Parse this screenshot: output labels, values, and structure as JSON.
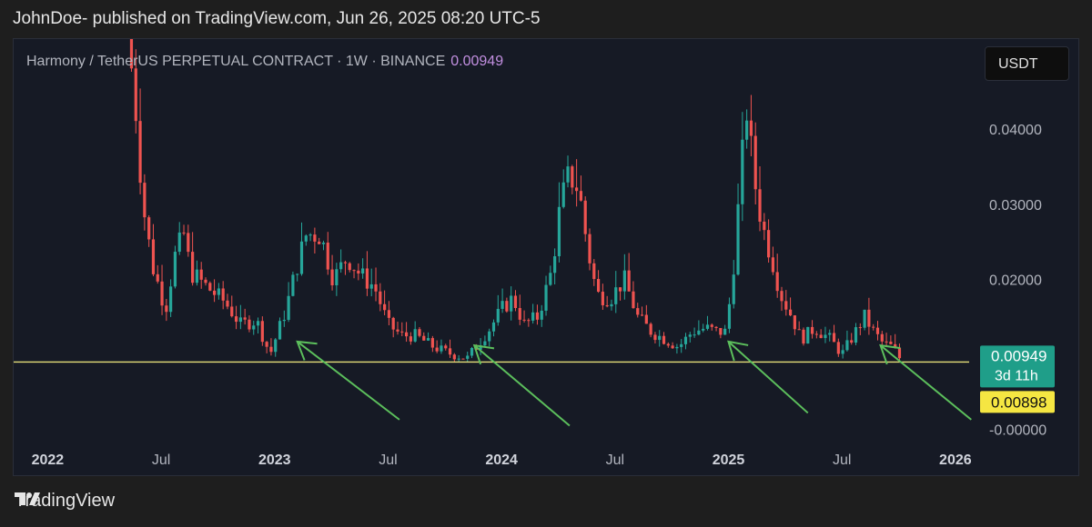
{
  "header": {
    "published": "JohnDoe- published on TradingView.com, Jun 26, 2025 08:20 UTC-5"
  },
  "symbol": {
    "text": "Harmony / TetherUS PERPETUAL CONTRACT · 1W · BINANCE",
    "price": "0.00949"
  },
  "currency_button": "USDT",
  "footer": {
    "brand": "TradingView"
  },
  "colors": {
    "up": "#26a69a",
    "down": "#ef5350",
    "support": "#e6e07a",
    "arrow": "#5cbf5c",
    "price_tag": "#1f9e89",
    "level_tag": "#f5e642"
  },
  "chart_data": {
    "type": "candlestick",
    "timeframe": "1W",
    "y_ticks": [
      "0.04000",
      "0.03000",
      "0.02000",
      "-0.00000"
    ],
    "x_ticks": [
      "2022",
      "Jul",
      "2023",
      "Jul",
      "2024",
      "Jul",
      "2025",
      "Jul",
      "2026"
    ],
    "x_tick_dates": [
      2022.0,
      2022.5,
      2023.0,
      2023.5,
      2024.0,
      2024.5,
      2025.0,
      2025.5,
      2026.0
    ],
    "ylim": [
      -0.0015,
      0.052
    ],
    "xlim": [
      2021.85,
      2026.55
    ],
    "current_price": {
      "value": 0.00949,
      "label": "0.00949",
      "countdown": "3d 11h"
    },
    "support_level": {
      "value": 0.00898,
      "label": "0.00898"
    },
    "annotations": {
      "arrows": [
        {
          "tip": [
            2023.1,
            0.0117
          ],
          "tail": [
            2023.55,
            0.0013
          ]
        },
        {
          "tip": [
            2023.88,
            0.0112
          ],
          "tail": [
            2024.3,
            0.0005
          ]
        },
        {
          "tip": [
            2025.0,
            0.0117
          ],
          "tail": [
            2025.35,
            0.0022
          ]
        },
        {
          "tip": [
            2025.67,
            0.0112
          ],
          "tail": [
            2026.07,
            0.0013
          ]
        }
      ]
    },
    "anchors": [
      [
        2022.35,
        0.052
      ],
      [
        2022.38,
        0.046
      ],
      [
        2022.42,
        0.03
      ],
      [
        2022.46,
        0.022
      ],
      [
        2022.52,
        0.016
      ],
      [
        2022.56,
        0.023
      ],
      [
        2022.6,
        0.026
      ],
      [
        2022.63,
        0.021
      ],
      [
        2022.7,
        0.019
      ],
      [
        2022.78,
        0.017
      ],
      [
        2022.85,
        0.014
      ],
      [
        2022.92,
        0.0145
      ],
      [
        2022.98,
        0.01
      ],
      [
        2023.05,
        0.016
      ],
      [
        2023.1,
        0.022
      ],
      [
        2023.14,
        0.026
      ],
      [
        2023.2,
        0.026
      ],
      [
        2023.26,
        0.02
      ],
      [
        2023.32,
        0.023
      ],
      [
        2023.38,
        0.0205
      ],
      [
        2023.44,
        0.019
      ],
      [
        2023.5,
        0.014
      ],
      [
        2023.56,
        0.0125
      ],
      [
        2023.62,
        0.0125
      ],
      [
        2023.7,
        0.011
      ],
      [
        2023.78,
        0.01
      ],
      [
        2023.85,
        0.0095
      ],
      [
        2023.9,
        0.0115
      ],
      [
        2023.95,
        0.0135
      ],
      [
        2024.0,
        0.016
      ],
      [
        2024.05,
        0.0175
      ],
      [
        2024.1,
        0.014
      ],
      [
        2024.16,
        0.015
      ],
      [
        2024.22,
        0.021
      ],
      [
        2024.26,
        0.03
      ],
      [
        2024.3,
        0.034
      ],
      [
        2024.34,
        0.032
      ],
      [
        2024.38,
        0.024
      ],
      [
        2024.42,
        0.018
      ],
      [
        2024.48,
        0.0175
      ],
      [
        2024.54,
        0.02
      ],
      [
        2024.6,
        0.015
      ],
      [
        2024.66,
        0.013
      ],
      [
        2024.72,
        0.012
      ],
      [
        2024.78,
        0.011
      ],
      [
        2024.84,
        0.013
      ],
      [
        2024.9,
        0.0135
      ],
      [
        2024.95,
        0.013
      ],
      [
        2024.99,
        0.013
      ],
      [
        2025.02,
        0.021
      ],
      [
        2025.05,
        0.032
      ],
      [
        2025.08,
        0.043
      ],
      [
        2025.11,
        0.034
      ],
      [
        2025.15,
        0.027
      ],
      [
        2025.19,
        0.023
      ],
      [
        2025.23,
        0.018
      ],
      [
        2025.28,
        0.015
      ],
      [
        2025.32,
        0.012
      ],
      [
        2025.38,
        0.0135
      ],
      [
        2025.45,
        0.012
      ],
      [
        2025.5,
        0.01
      ],
      [
        2025.55,
        0.0125
      ],
      [
        2025.6,
        0.015
      ],
      [
        2025.64,
        0.013
      ],
      [
        2025.68,
        0.0115
      ],
      [
        2025.72,
        0.011
      ],
      [
        2025.76,
        0.00949
      ]
    ]
  }
}
